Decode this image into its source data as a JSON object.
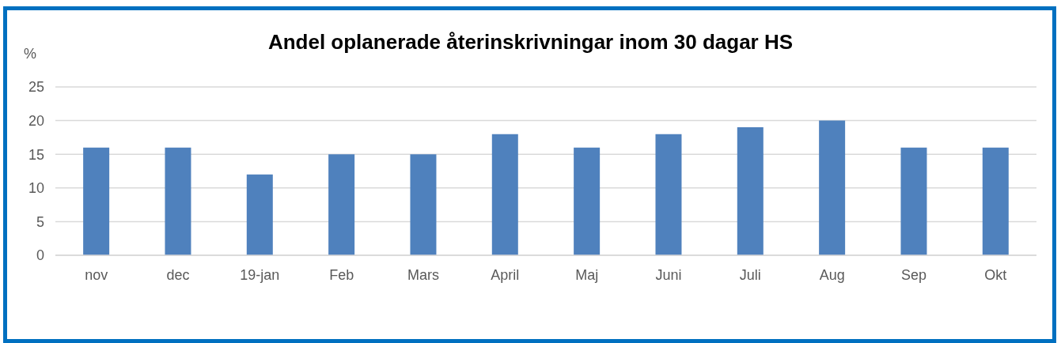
{
  "chart_data": {
    "type": "bar",
    "title": "Andel oplanerade återinskrivningar inom 30 dagar HS",
    "ylabel": "%",
    "categories": [
      "nov",
      "dec",
      "19-jan",
      "Feb",
      "Mars",
      "April",
      "Maj",
      "Juni",
      "Juli",
      "Aug",
      "Sep",
      "Okt"
    ],
    "values": [
      16,
      16,
      12,
      15,
      15,
      18,
      16,
      18,
      19,
      20,
      16,
      16
    ],
    "color": "#4f81bd",
    "ylim": [
      0,
      25
    ],
    "yticks": [
      0,
      5,
      10,
      15,
      20,
      25
    ],
    "grid": "y",
    "legend": false
  }
}
